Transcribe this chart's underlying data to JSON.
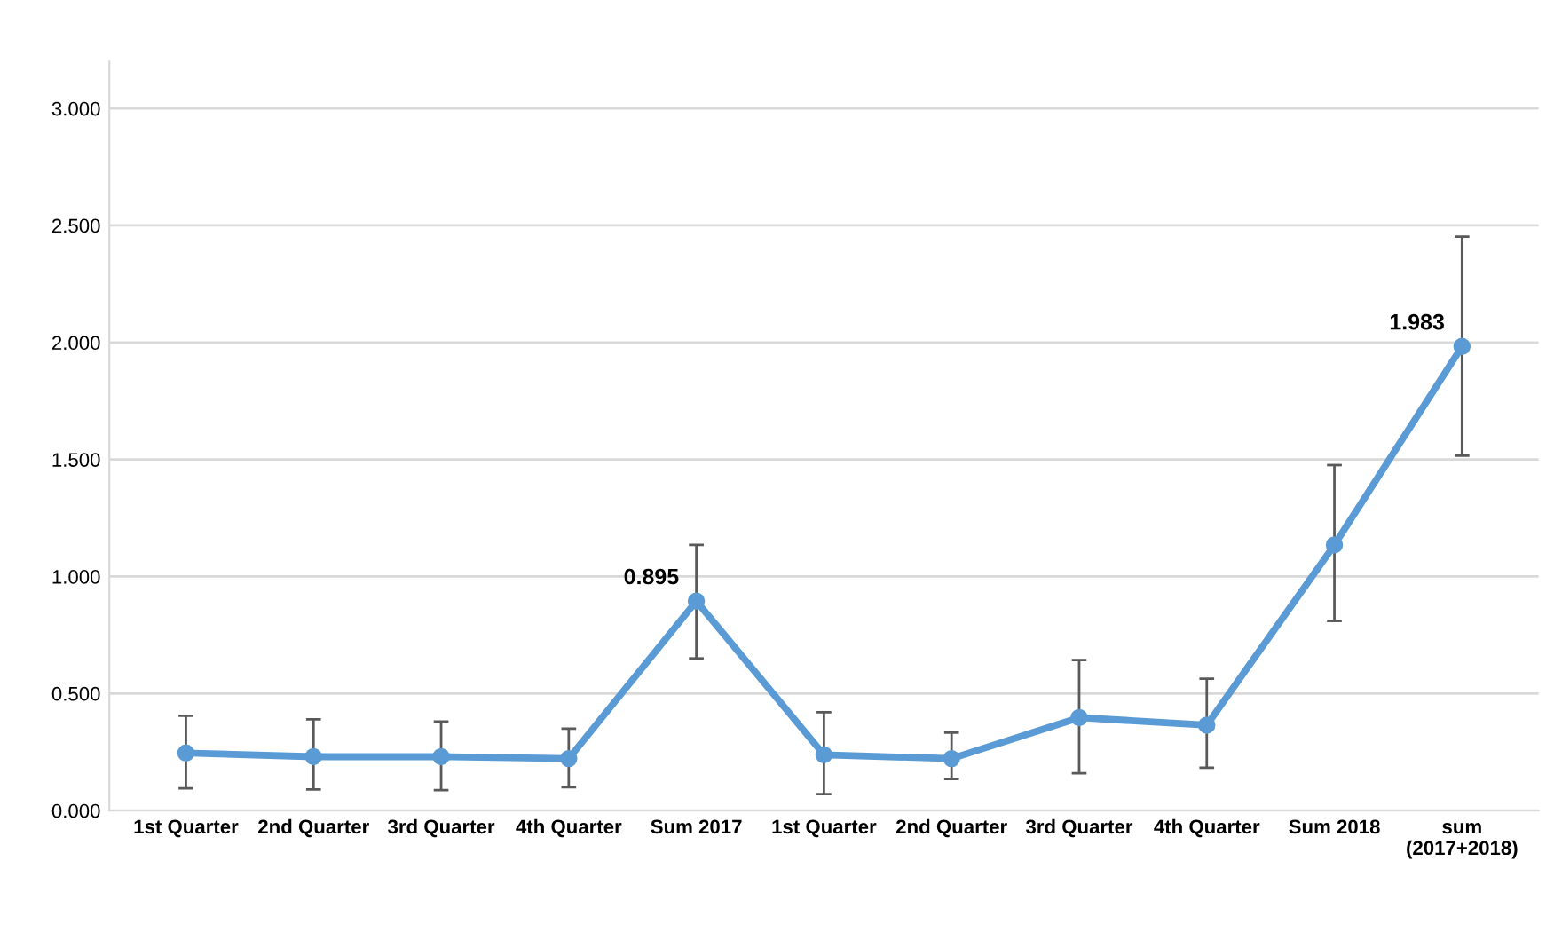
{
  "chart_data": {
    "type": "line",
    "categories": [
      "1st Quarter",
      "2nd Quarter",
      "3rd Quarter",
      "4th Quarter",
      "Sum 2017",
      "1st Quarter",
      "2nd Quarter",
      "3rd Quarter",
      "4th Quarter",
      "Sum 2018",
      "sum\n(2017+2018)"
    ],
    "series": [
      {
        "color": "#5b9bd5",
        "values": [
          0.246,
          0.23,
          0.23,
          0.222,
          0.895,
          0.238,
          0.222,
          0.397,
          0.365,
          1.135,
          1.983
        ],
        "errors": [
          [
            0.095,
            0.405
          ],
          [
            0.09,
            0.39
          ],
          [
            0.087,
            0.38
          ],
          [
            0.1,
            0.35
          ],
          [
            0.65,
            1.135
          ],
          [
            0.07,
            0.42
          ],
          [
            0.135,
            0.333
          ],
          [
            0.159,
            0.643
          ],
          [
            0.183,
            0.563
          ],
          [
            0.81,
            1.476
          ],
          [
            1.516,
            2.452
          ]
        ],
        "value_labels": [
          null,
          null,
          null,
          null,
          "0.895",
          null,
          null,
          null,
          null,
          null,
          "1.983"
        ]
      }
    ],
    "ylim": [
      0,
      3.2
    ],
    "yticks": [
      {
        "value": 0,
        "label": "0.000"
      },
      {
        "value": 0.5,
        "label": "0.500"
      },
      {
        "value": 1,
        "label": "1.000"
      },
      {
        "value": 1.5,
        "label": "1.500"
      },
      {
        "value": 2,
        "label": "2.000"
      },
      {
        "value": 2.5,
        "label": "2.500"
      },
      {
        "value": 3,
        "label": "3.000"
      }
    ],
    "grid": "y",
    "marker": "circle",
    "line_style": "solid",
    "legend": false
  }
}
